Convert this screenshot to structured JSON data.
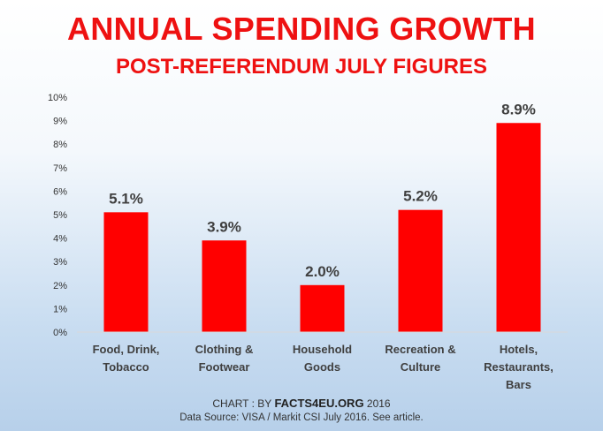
{
  "title": "ANNUAL SPENDING GROWTH",
  "subtitle": "POST-REFERENDUM JULY FIGURES",
  "credit": {
    "prefix": "CHART : BY",
    "brand": "FACTS4EU.ORG",
    "year": "2016"
  },
  "source": "Data Source: VISA / Markit CSI July 2016.  See article.",
  "colors": {
    "title": "#ee1111",
    "bar": "#ff0000"
  },
  "chart_data": {
    "type": "bar",
    "categories": [
      [
        "Food, Drink,",
        "Tobacco"
      ],
      [
        "Clothing &",
        "Footwear"
      ],
      [
        "Household",
        "Goods"
      ],
      [
        "Recreation &",
        "Culture"
      ],
      [
        "Hotels,",
        "Restaurants,",
        "Bars"
      ]
    ],
    "values": [
      5.1,
      3.9,
      2.0,
      5.2,
      8.9
    ],
    "data_labels": [
      "5.1%",
      "3.9%",
      "2.0%",
      "5.2%",
      "8.9%"
    ],
    "ylim": [
      0,
      10
    ],
    "yticks": [
      "0%",
      "1%",
      "2%",
      "3%",
      "4%",
      "5%",
      "6%",
      "7%",
      "8%",
      "9%",
      "10%"
    ],
    "grid": false,
    "legend": "none"
  }
}
